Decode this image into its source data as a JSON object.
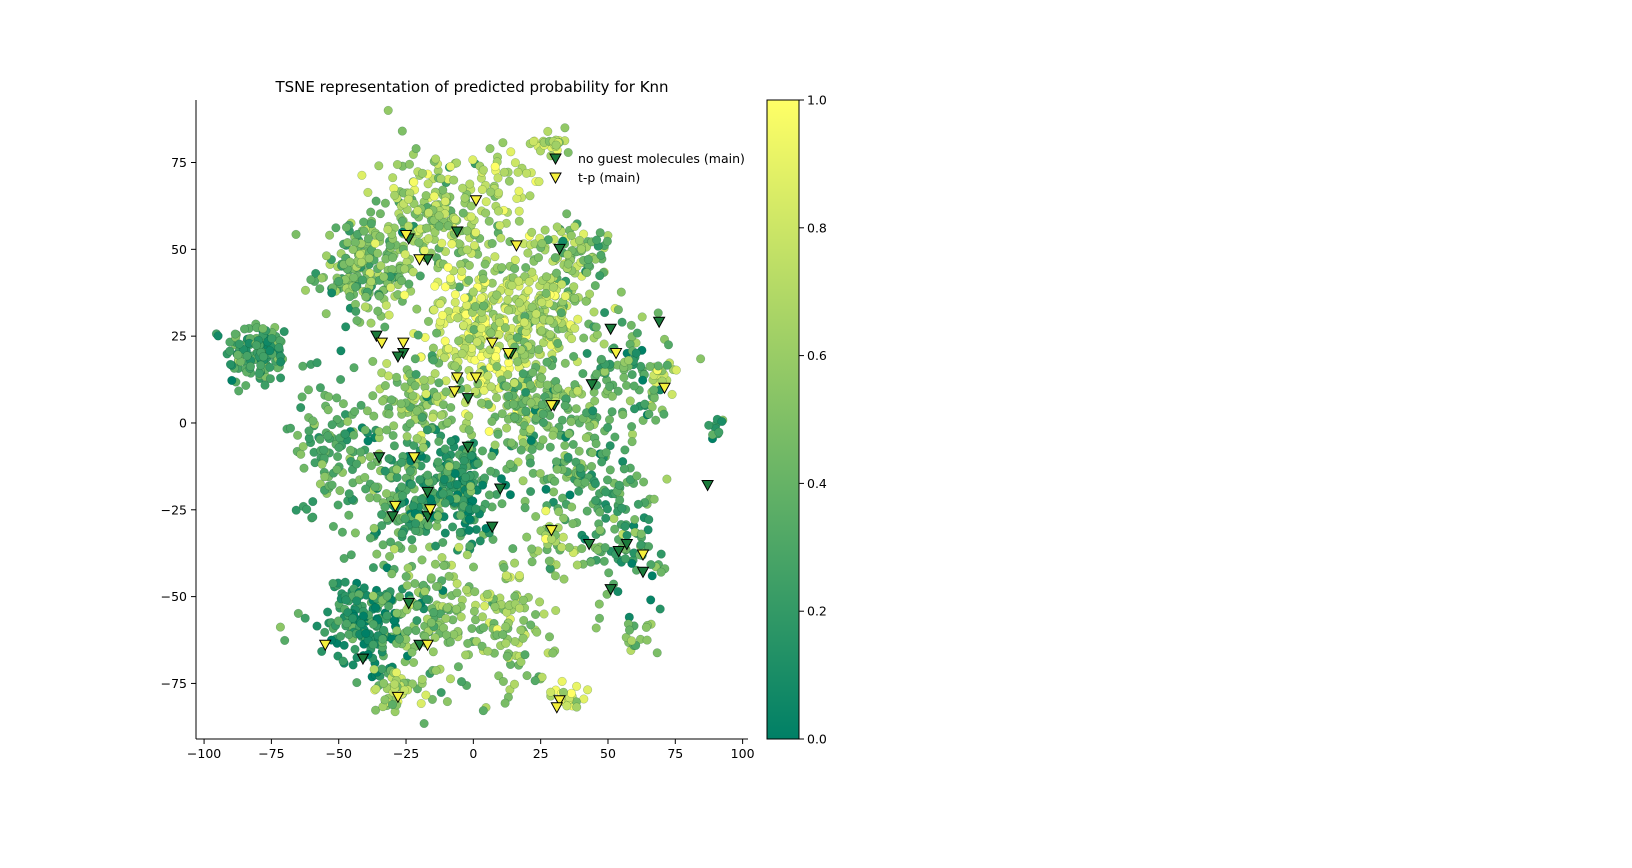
{
  "chart_data": {
    "type": "scatter",
    "title": "TSNE representation of predicted probability for Knn",
    "xlabel": "",
    "ylabel": "",
    "xlim": [
      -103,
      102
    ],
    "ylim": [
      -91,
      93
    ],
    "xticks": [
      -100,
      -75,
      -50,
      -25,
      0,
      25,
      50,
      75,
      100
    ],
    "yticks": [
      -75,
      -50,
      -25,
      0,
      25,
      50,
      75
    ],
    "xtick_labels": [
      "−100",
      "−75",
      "−50",
      "−25",
      "0",
      "25",
      "50",
      "75",
      "100"
    ],
    "ytick_labels": [
      "−75",
      "−50",
      "−25",
      "0",
      "25",
      "50",
      "75"
    ],
    "colorbar": {
      "range": [
        0,
        1
      ],
      "ticks": [
        "0.0",
        "0.2",
        "0.4",
        "0.6",
        "0.8",
        "1.0"
      ],
      "colormap": "summer",
      "low_color": "#008066",
      "high_color": "#ffff66"
    },
    "legend": {
      "placement": "top-right",
      "entries": [
        {
          "label": "no guest molecules (main)",
          "marker": "triangle-down",
          "color": "#1a7a3a"
        },
        {
          "label": "t-p (main)",
          "marker": "triangle-down",
          "color": "#f5f03c"
        }
      ]
    },
    "clusters": [
      {
        "x": -80,
        "y": 20,
        "sx": 6,
        "sy": 5,
        "n": 130,
        "p": 0.3
      },
      {
        "x": -40,
        "y": 44,
        "sx": 9,
        "sy": 7,
        "n": 200,
        "p": 0.45
      },
      {
        "x": -15,
        "y": 60,
        "sx": 11,
        "sy": 10,
        "n": 200,
        "p": 0.6
      },
      {
        "x": 5,
        "y": 25,
        "sx": 12,
        "sy": 12,
        "n": 260,
        "p": 0.82
      },
      {
        "x": 25,
        "y": 35,
        "sx": 12,
        "sy": 10,
        "n": 200,
        "p": 0.68
      },
      {
        "x": 10,
        "y": 70,
        "sx": 5,
        "sy": 6,
        "n": 40,
        "p": 0.75
      },
      {
        "x": 28,
        "y": 80,
        "sx": 4,
        "sy": 2,
        "n": 25,
        "p": 0.7
      },
      {
        "x": 38,
        "y": 50,
        "sx": 7,
        "sy": 4,
        "n": 60,
        "p": 0.45
      },
      {
        "x": -50,
        "y": -8,
        "sx": 9,
        "sy": 10,
        "n": 130,
        "p": 0.35
      },
      {
        "x": -25,
        "y": -20,
        "sx": 7,
        "sy": 8,
        "n": 120,
        "p": 0.3
      },
      {
        "x": -5,
        "y": -18,
        "sx": 8,
        "sy": 8,
        "n": 200,
        "p": 0.2
      },
      {
        "x": -20,
        "y": 5,
        "sx": 8,
        "sy": 8,
        "n": 100,
        "p": 0.5
      },
      {
        "x": 25,
        "y": 5,
        "sx": 12,
        "sy": 8,
        "n": 160,
        "p": 0.45
      },
      {
        "x": 40,
        "y": -15,
        "sx": 12,
        "sy": 7,
        "n": 120,
        "p": 0.35
      },
      {
        "x": 55,
        "y": -35,
        "sx": 8,
        "sy": 8,
        "n": 90,
        "p": 0.3
      },
      {
        "x": -40,
        "y": -57,
        "sx": 9,
        "sy": 6,
        "n": 180,
        "p": 0.15
      },
      {
        "x": -15,
        "y": -55,
        "sx": 9,
        "sy": 10,
        "n": 140,
        "p": 0.5
      },
      {
        "x": 15,
        "y": -58,
        "sx": 8,
        "sy": 9,
        "n": 110,
        "p": 0.55
      },
      {
        "x": -28,
        "y": -78,
        "sx": 5,
        "sy": 3,
        "n": 40,
        "p": 0.65
      },
      {
        "x": 35,
        "y": -78,
        "sx": 4,
        "sy": 2,
        "n": 20,
        "p": 0.8
      },
      {
        "x": 70,
        "y": 13,
        "sx": 3,
        "sy": 4,
        "n": 25,
        "p": 0.7
      },
      {
        "x": 90,
        "y": -1,
        "sx": 2,
        "sy": 2,
        "n": 10,
        "p": 0.25
      },
      {
        "x": 60,
        "y": -62,
        "sx": 3,
        "sy": 3,
        "n": 15,
        "p": 0.5
      },
      {
        "x": 30,
        "y": -35,
        "sx": 5,
        "sy": 4,
        "n": 40,
        "p": 0.55
      },
      {
        "x": 55,
        "y": 15,
        "sx": 9,
        "sy": 10,
        "n": 90,
        "p": 0.35
      }
    ],
    "markers_no_guest": [
      [
        -36,
        25
      ],
      [
        -26,
        20
      ],
      [
        -28,
        19
      ],
      [
        -24,
        53
      ],
      [
        -17,
        47
      ],
      [
        -6,
        55
      ],
      [
        32,
        50
      ],
      [
        51,
        27
      ],
      [
        69,
        29
      ],
      [
        14,
        20
      ],
      [
        -2,
        7
      ],
      [
        30,
        5
      ],
      [
        44,
        11
      ],
      [
        -35,
        -10
      ],
      [
        -2,
        -7
      ],
      [
        -17,
        -20
      ],
      [
        10,
        -19
      ],
      [
        -30,
        -27
      ],
      [
        -17,
        -27
      ],
      [
        7,
        -30
      ],
      [
        43,
        -35
      ],
      [
        54,
        -37
      ],
      [
        57,
        -35
      ],
      [
        63,
        -43
      ],
      [
        51,
        -48
      ],
      [
        -24,
        -52
      ],
      [
        -41,
        -68
      ],
      [
        -20,
        -64
      ],
      [
        87,
        -18
      ]
    ],
    "markers_tp": [
      [
        -25,
        54
      ],
      [
        -20,
        47
      ],
      [
        1,
        64
      ],
      [
        16,
        51
      ],
      [
        -34,
        23
      ],
      [
        -26,
        23
      ],
      [
        7,
        23
      ],
      [
        13,
        20
      ],
      [
        53,
        20
      ],
      [
        71,
        10
      ],
      [
        -6,
        13
      ],
      [
        1,
        13
      ],
      [
        -7,
        9
      ],
      [
        29,
        5
      ],
      [
        -22,
        -10
      ],
      [
        -29,
        -24
      ],
      [
        -16,
        -25
      ],
      [
        29,
        -31
      ],
      [
        63,
        -38
      ],
      [
        -55,
        -64
      ],
      [
        -17,
        -64
      ],
      [
        -28,
        -79
      ],
      [
        32,
        -80
      ],
      [
        31,
        -82
      ]
    ]
  }
}
